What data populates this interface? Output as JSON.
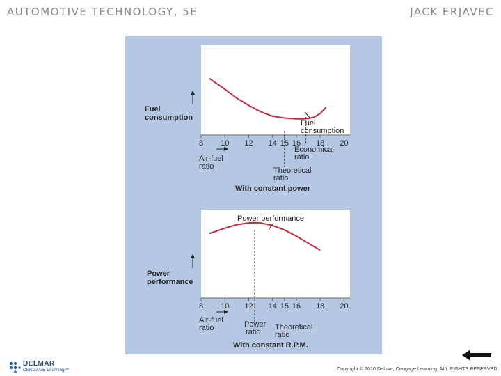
{
  "header": {
    "left": "AUTOMOTIVE TECHNOLOGY, 5E",
    "right": "JACK ERJAVEC"
  },
  "footer": {
    "logo_top": "DELMAR",
    "logo_bottom": "CENGAGE Learning™",
    "copyright": "Copyright © 2010 Delmar, Cengage Learning. ALL RIGHTS RESERVED"
  },
  "colors": {
    "panel": "#b4c8e4",
    "curve": "#c8283c",
    "header": "#8a8a8a"
  },
  "icons": {
    "back": "left-arrow-icon",
    "logo": "delmar-logo-icon"
  },
  "chart_data": [
    {
      "type": "line",
      "title": "With constant power",
      "ylabel": "Fuel consumption",
      "xlabel": "Air-fuel ratio",
      "xticks": [
        "8",
        "10",
        "12",
        "14",
        "15",
        "16",
        "18",
        "20"
      ],
      "xtick_values": [
        8,
        10,
        12,
        14,
        15,
        16,
        18,
        20
      ],
      "xlim": [
        8,
        20.5
      ],
      "ylim": [
        0,
        100
      ],
      "series": [
        {
          "x": [
            8.7,
            10,
            11,
            12,
            13,
            14,
            15,
            16,
            16.5,
            17,
            17.5,
            18,
            18.5
          ],
          "y": [
            63,
            51,
            41,
            33,
            26,
            21,
            19,
            18,
            18,
            18.5,
            20,
            24,
            31
          ]
        }
      ],
      "annotations": [
        {
          "text": [
            "Fuel",
            "consumption"
          ],
          "x": 16.9
        },
        {
          "text": [
            "Economical",
            "ratio"
          ],
          "x": 16.8
        },
        {
          "text": [
            "Theoretical",
            "ratio"
          ],
          "x": 15
        }
      ]
    },
    {
      "type": "line",
      "title": "With constant R.P.M.",
      "ylabel": "Power performance",
      "xlabel": "Air-fuel ratio",
      "xticks": [
        "8",
        "10",
        "12",
        "14",
        "15",
        "16",
        "18",
        "20"
      ],
      "xtick_values": [
        8,
        10,
        12,
        14,
        15,
        16,
        18,
        20
      ],
      "xlim": [
        8,
        20.5
      ],
      "ylim": [
        0,
        100
      ],
      "series": [
        {
          "x": [
            8.7,
            10,
            11,
            12,
            12.5,
            13,
            14,
            15,
            16,
            17,
            18
          ],
          "y": [
            73,
            79,
            83,
            85,
            85.3,
            85,
            82,
            77,
            70,
            62,
            54
          ]
        }
      ],
      "annotations": [
        {
          "text": [
            "Power performance"
          ],
          "x": 13.8
        },
        {
          "text": [
            "Power",
            "ratio"
          ],
          "x": 12.5
        },
        {
          "text": [
            "Theoretical",
            "ratio"
          ],
          "x": 15
        }
      ]
    }
  ]
}
